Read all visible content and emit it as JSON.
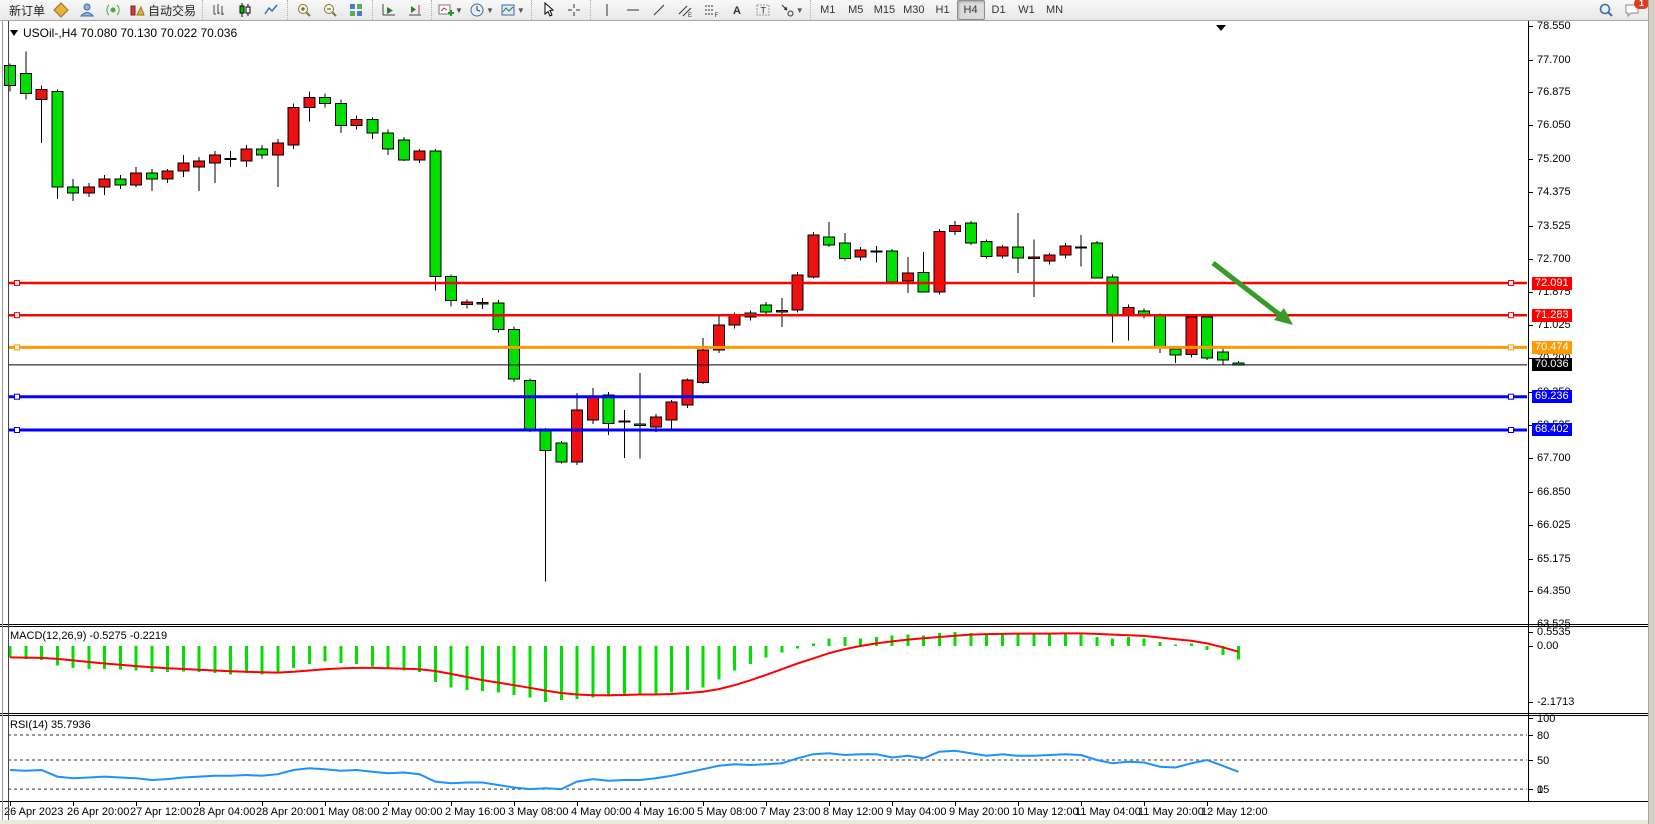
{
  "toolbar": {
    "new_order_label": "新订单",
    "auto_trading_label": "自动交易",
    "icon_groups": [
      {
        "items": [
          {
            "name": "new-order-button",
            "label_key": "new_order_label"
          },
          {
            "name": "gold-arrows-icon",
            "icon": "gold"
          },
          {
            "name": "user-account-icon",
            "icon": "user"
          },
          {
            "name": "broadcast-icon",
            "icon": "broadcast"
          },
          {
            "name": "auto-trading-button",
            "icon": "autotrade",
            "label_key": "auto_trading_label"
          }
        ]
      },
      {
        "items": [
          {
            "name": "bar-chart-button",
            "icon": "bars"
          },
          {
            "name": "candlestick-chart-button",
            "icon": "candles"
          },
          {
            "name": "line-chart-button",
            "icon": "line"
          }
        ]
      },
      {
        "items": [
          {
            "name": "zoom-in-button",
            "icon": "zoomin"
          },
          {
            "name": "zoom-out-button",
            "icon": "zoomout"
          },
          {
            "name": "tile-windows-button",
            "icon": "tiles"
          }
        ]
      },
      {
        "items": [
          {
            "name": "auto-scroll-button",
            "icon": "autoscroll"
          },
          {
            "name": "chart-shift-button",
            "icon": "shift"
          }
        ]
      },
      {
        "items": [
          {
            "name": "new-chart-button",
            "icon": "newchart",
            "dropdown": true
          },
          {
            "name": "periods-button",
            "icon": "clock",
            "dropdown": true
          },
          {
            "name": "templates-button",
            "icon": "template",
            "dropdown": true
          }
        ]
      },
      {
        "items": [
          {
            "name": "cursor-button",
            "icon": "cursor"
          },
          {
            "name": "crosshair-button",
            "icon": "crosshair"
          }
        ]
      },
      {
        "items": [
          {
            "name": "vertical-line-button",
            "icon": "vline"
          },
          {
            "name": "horizontal-line-button",
            "icon": "hline"
          },
          {
            "name": "trendline-button",
            "icon": "trend"
          },
          {
            "name": "channel-button",
            "icon": "channel"
          },
          {
            "name": "fibonacci-button",
            "icon": "fibo"
          },
          {
            "name": "text-button",
            "icon": "textA"
          },
          {
            "name": "text-label-button",
            "icon": "textT"
          },
          {
            "name": "arrows-shapes-button",
            "icon": "shapes",
            "dropdown": true
          }
        ]
      }
    ],
    "timeframes": [
      "M1",
      "M5",
      "M15",
      "M30",
      "H1",
      "H4",
      "D1",
      "W1",
      "MN"
    ],
    "active_timeframe": "H4",
    "notification_count": "1"
  },
  "chart": {
    "title": "USOil-,H4  70.080 70.130 70.022 70.036",
    "price_axis_ticks": [
      "78.550",
      "77.700",
      "76.875",
      "76.050",
      "75.200",
      "74.375",
      "73.525",
      "72.700",
      "71.875",
      "71.025",
      "70.200",
      "69.350",
      "68.525",
      "67.700",
      "66.850",
      "66.025",
      "65.175",
      "64.350",
      "63.525"
    ],
    "time_labels": [
      "26 Apr 2023",
      "26 Apr 20:00",
      "27 Apr 12:00",
      "28 Apr 04:00",
      "28 Apr 20:00",
      "1 May 08:00",
      "2 May 00:00",
      "2 May 16:00",
      "3 May 08:00",
      "4 May 00:00",
      "4 May 16:00",
      "5 May 08:00",
      "7 May 23:00",
      "8 May 12:00",
      "9 May 04:00",
      "9 May 20:00",
      "10 May 12:00",
      "11 May 04:00",
      "11 May 20:00",
      "12 May 12:00"
    ],
    "hlines": [
      {
        "label": "72.091",
        "price": 72.091,
        "color": "#ff0000",
        "width": 2.5,
        "anchors": true
      },
      {
        "label": "71.283",
        "price": 71.283,
        "color": "#ff0000",
        "width": 2.5,
        "anchors": true
      },
      {
        "label": "70.474",
        "price": 70.474,
        "color": "#ff9900",
        "width": 3,
        "anchors": true
      },
      {
        "label": "70.036",
        "price": 70.036,
        "color": "#000000",
        "width": 1,
        "anchors": false
      },
      {
        "label": "69.236",
        "price": 69.236,
        "color": "#0000ff",
        "width": 3,
        "anchors": true
      },
      {
        "label": "68.402",
        "price": 68.402,
        "color": "#0000ff",
        "width": 3,
        "anchors": true
      }
    ],
    "arrow_color": "#379b28"
  },
  "macd": {
    "label": "MACD(12,26,9) -0.5275 -0.2219",
    "axis": [
      "0.5535",
      "0.00",
      "-2.1713"
    ]
  },
  "rsi": {
    "label": "RSI(14) 35.7936",
    "axis": [
      "100",
      "80",
      "50",
      "15",
      "0"
    ]
  },
  "chart_data": {
    "type": "candlestick",
    "symbol": "USOil-",
    "timeframe": "H4",
    "title": "USOil-,H4",
    "current_ohlc": {
      "open": "70.080",
      "high": "70.130",
      "low": "70.022",
      "close": "70.036"
    },
    "bull_color": "#ee1111",
    "bear_color": "#00df00",
    "macd_hist_color": "#00df00",
    "macd_signal_color": "#ff0000",
    "rsi_line_color": "#1e90ff",
    "ylim": [
      63.525,
      78.55
    ],
    "candles": [
      [
        77.55,
        77.6,
        76.9,
        77.05
      ],
      [
        77.35,
        77.9,
        76.7,
        76.85
      ],
      [
        76.7,
        77.05,
        75.6,
        76.95
      ],
      [
        76.9,
        76.95,
        74.2,
        74.5
      ],
      [
        74.5,
        74.7,
        74.15,
        74.35
      ],
      [
        74.35,
        74.6,
        74.25,
        74.5
      ],
      [
        74.5,
        74.8,
        74.3,
        74.7
      ],
      [
        74.7,
        74.8,
        74.45,
        74.55
      ],
      [
        74.55,
        75.0,
        74.5,
        74.85
      ],
      [
        74.85,
        74.95,
        74.4,
        74.7
      ],
      [
        74.7,
        74.95,
        74.6,
        74.9
      ],
      [
        74.9,
        75.3,
        74.75,
        75.1
      ],
      [
        75.0,
        75.25,
        74.4,
        75.15
      ],
      [
        75.1,
        75.4,
        74.6,
        75.3
      ],
      [
        75.2,
        75.4,
        75.0,
        75.22
      ],
      [
        75.15,
        75.55,
        75.0,
        75.45
      ],
      [
        75.45,
        75.55,
        75.2,
        75.3
      ],
      [
        75.3,
        75.7,
        74.5,
        75.6
      ],
      [
        75.55,
        76.6,
        75.45,
        76.5
      ],
      [
        76.5,
        76.9,
        76.15,
        76.75
      ],
      [
        76.75,
        76.85,
        76.5,
        76.6
      ],
      [
        76.6,
        76.7,
        75.85,
        76.05
      ],
      [
        76.05,
        76.3,
        75.95,
        76.2
      ],
      [
        76.2,
        76.25,
        75.7,
        75.85
      ],
      [
        75.85,
        75.95,
        75.3,
        75.45
      ],
      [
        75.68,
        75.75,
        75.15,
        75.18
      ],
      [
        75.18,
        75.45,
        75.1,
        75.4
      ],
      [
        75.4,
        75.45,
        71.9,
        72.25
      ],
      [
        72.25,
        72.3,
        71.5,
        71.65
      ],
      [
        71.55,
        71.68,
        71.45,
        71.62
      ],
      [
        71.58,
        71.72,
        71.44,
        71.6
      ],
      [
        71.59,
        71.66,
        70.85,
        70.92
      ],
      [
        70.93,
        71.0,
        69.6,
        69.68
      ],
      [
        69.64,
        69.7,
        68.35,
        68.42
      ],
      [
        68.4,
        68.45,
        64.6,
        67.88
      ],
      [
        68.08,
        68.12,
        67.56,
        67.6
      ],
      [
        67.6,
        69.33,
        67.52,
        68.9
      ],
      [
        68.65,
        69.45,
        68.55,
        69.23
      ],
      [
        69.28,
        69.35,
        68.27,
        68.57
      ],
      [
        68.63,
        68.9,
        67.7,
        68.6
      ],
      [
        68.55,
        69.83,
        67.68,
        68.52
      ],
      [
        68.48,
        68.8,
        68.35,
        68.73
      ],
      [
        68.65,
        69.15,
        68.4,
        69.1
      ],
      [
        69.03,
        69.7,
        68.95,
        69.66
      ],
      [
        69.6,
        70.71,
        69.55,
        70.41
      ],
      [
        70.41,
        71.3,
        70.33,
        71.04
      ],
      [
        71.04,
        71.35,
        70.95,
        71.29
      ],
      [
        71.34,
        71.4,
        71.15,
        71.24
      ],
      [
        71.54,
        71.62,
        71.3,
        71.36
      ],
      [
        71.36,
        71.71,
        70.99,
        71.4
      ],
      [
        71.41,
        72.37,
        71.35,
        72.29
      ],
      [
        72.24,
        73.37,
        72.21,
        73.3
      ],
      [
        73.24,
        73.62,
        73.0,
        73.04
      ],
      [
        73.09,
        73.35,
        72.65,
        72.71
      ],
      [
        72.74,
        73.0,
        72.65,
        72.92
      ],
      [
        72.9,
        73.02,
        72.6,
        72.87
      ],
      [
        72.89,
        72.95,
        72.05,
        72.12
      ],
      [
        72.14,
        72.74,
        71.84,
        72.34
      ],
      [
        72.36,
        72.87,
        71.85,
        71.87
      ],
      [
        71.87,
        73.45,
        71.8,
        73.38
      ],
      [
        73.38,
        73.65,
        73.3,
        73.53
      ],
      [
        73.6,
        73.65,
        73.05,
        73.1
      ],
      [
        73.13,
        73.18,
        72.7,
        72.75
      ],
      [
        72.77,
        73.05,
        72.7,
        73.0
      ],
      [
        73.0,
        73.85,
        72.34,
        72.72
      ],
      [
        72.72,
        73.18,
        71.74,
        72.74
      ],
      [
        72.64,
        72.85,
        72.55,
        72.79
      ],
      [
        72.79,
        73.1,
        72.7,
        73.02
      ],
      [
        73.0,
        73.3,
        72.5,
        72.98
      ],
      [
        73.1,
        73.15,
        72.2,
        72.22
      ],
      [
        72.24,
        72.3,
        70.6,
        71.29
      ],
      [
        71.27,
        71.55,
        70.65,
        71.47
      ],
      [
        71.39,
        71.45,
        71.2,
        71.29
      ],
      [
        71.29,
        71.32,
        70.33,
        70.49
      ],
      [
        70.43,
        70.5,
        70.08,
        70.28
      ],
      [
        70.3,
        71.28,
        70.22,
        71.24
      ],
      [
        71.24,
        71.3,
        70.16,
        70.21
      ],
      [
        70.36,
        70.45,
        70.05,
        70.16
      ],
      [
        70.08,
        70.13,
        70.022,
        70.036
      ]
    ],
    "macd_hist": [
      -0.45,
      -0.5,
      -0.55,
      -0.75,
      -0.85,
      -0.9,
      -0.9,
      -0.92,
      -0.95,
      -1.0,
      -1.0,
      -0.98,
      -1.0,
      -1.05,
      -1.1,
      -1.05,
      -1.1,
      -1.05,
      -0.85,
      -0.7,
      -0.6,
      -0.65,
      -0.7,
      -0.8,
      -0.9,
      -0.95,
      -1.0,
      -1.4,
      -1.6,
      -1.7,
      -1.75,
      -1.8,
      -1.9,
      -2.0,
      -2.17,
      -2.1,
      -2.05,
      -2.0,
      -1.95,
      -1.9,
      -1.85,
      -1.9,
      -1.8,
      -1.7,
      -1.6,
      -1.3,
      -0.95,
      -0.7,
      -0.45,
      -0.25,
      -0.1,
      0.1,
      0.3,
      0.35,
      0.3,
      0.35,
      0.4,
      0.45,
      0.4,
      0.5,
      0.55,
      0.5,
      0.45,
      0.5,
      0.5,
      0.45,
      0.5,
      0.5,
      0.45,
      0.35,
      0.3,
      0.35,
      0.3,
      0.15,
      0.05,
      0.1,
      -0.15,
      -0.35,
      -0.5275
    ],
    "macd_signal": [
      -0.44,
      -0.45,
      -0.46,
      -0.5,
      -0.56,
      -0.62,
      -0.68,
      -0.73,
      -0.78,
      -0.82,
      -0.86,
      -0.89,
      -0.92,
      -0.95,
      -0.98,
      -1.0,
      -1.02,
      -1.03,
      -1.0,
      -0.95,
      -0.9,
      -0.87,
      -0.85,
      -0.85,
      -0.86,
      -0.88,
      -0.9,
      -0.97,
      -1.08,
      -1.2,
      -1.32,
      -1.42,
      -1.52,
      -1.62,
      -1.73,
      -1.82,
      -1.88,
      -1.91,
      -1.91,
      -1.9,
      -1.88,
      -1.88,
      -1.86,
      -1.82,
      -1.77,
      -1.67,
      -1.52,
      -1.33,
      -1.12,
      -0.9,
      -0.68,
      -0.48,
      -0.28,
      -0.12,
      0.0,
      0.1,
      0.18,
      0.25,
      0.3,
      0.35,
      0.4,
      0.44,
      0.46,
      0.47,
      0.48,
      0.48,
      0.48,
      0.49,
      0.49,
      0.47,
      0.44,
      0.42,
      0.39,
      0.33,
      0.26,
      0.2,
      0.1,
      -0.05,
      -0.2219
    ],
    "rsi_values": [
      38,
      37,
      38,
      30,
      28,
      29,
      30,
      29,
      28,
      26,
      27,
      29,
      30,
      31,
      31,
      32,
      31,
      33,
      38,
      40,
      39,
      37,
      38,
      36,
      34,
      35,
      33,
      24,
      22,
      23,
      23,
      20,
      17,
      15,
      16,
      15,
      24,
      27,
      25,
      26,
      26,
      28,
      31,
      35,
      39,
      43,
      45,
      44,
      45,
      46,
      52,
      57,
      58,
      56,
      57,
      57,
      53,
      55,
      52,
      60,
      61,
      58,
      55,
      57,
      55,
      55,
      56,
      57,
      56,
      50,
      46,
      48,
      47,
      42,
      41,
      46,
      50,
      43,
      35.79
    ],
    "rsi_levels": [
      80,
      50,
      15
    ]
  }
}
